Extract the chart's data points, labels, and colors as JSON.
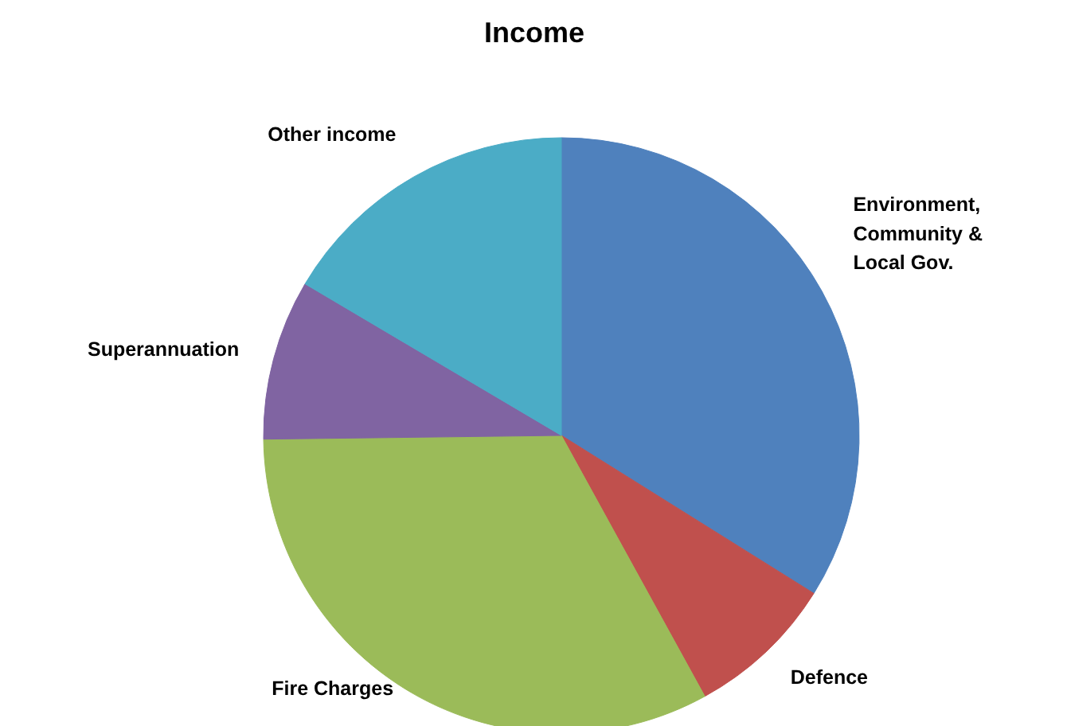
{
  "chart_data": {
    "type": "pie",
    "title": "Income",
    "categories": [
      "Environment,\nCommunity &\nLocal Gov.",
      "Defence",
      "Fire Charges",
      "Superannuation",
      "Other income"
    ],
    "values": [
      33.9,
      8.1,
      32.8,
      8.7,
      16.5
    ],
    "colors": [
      "#4f81bd",
      "#c0504d",
      "#9bbb59",
      "#8064a2",
      "#4bacc6"
    ]
  }
}
